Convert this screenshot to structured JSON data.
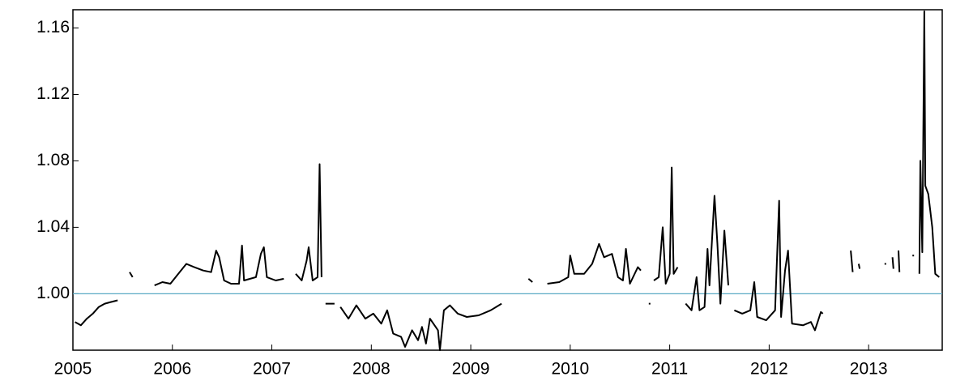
{
  "chart_data": {
    "type": "line",
    "x": [
      2005.02,
      2005.08,
      2005.14,
      2005.2,
      2005.26,
      2005.32,
      2005.38,
      2005.45,
      2005.5,
      2005.57,
      2005.6,
      2005.7,
      2005.82,
      2005.9,
      2005.98,
      2006.06,
      2006.14,
      2006.22,
      2006.31,
      2006.39,
      2006.44,
      2006.47,
      2006.52,
      2006.59,
      2006.67,
      2006.7,
      2006.72,
      2006.84,
      2006.89,
      2006.92,
      2006.95,
      2007.04,
      2007.12,
      2007.18,
      2007.24,
      2007.3,
      2007.35,
      2007.37,
      2007.41,
      2007.46,
      2007.48,
      2007.5,
      2007.52,
      2007.54,
      2007.63,
      2007.66,
      2007.69,
      2007.77,
      2007.85,
      2007.94,
      2008.02,
      2008.1,
      2008.16,
      2008.22,
      2008.3,
      2008.34,
      2008.41,
      2008.47,
      2008.51,
      2008.55,
      2008.59,
      2008.67,
      2008.69,
      2008.73,
      2008.79,
      2008.87,
      2008.96,
      2009.08,
      2009.2,
      2009.31,
      2009.4,
      2009.58,
      2009.62,
      2009.7,
      2009.77,
      2009.89,
      2009.98,
      2010.0,
      2010.04,
      2010.14,
      2010.22,
      2010.29,
      2010.34,
      2010.42,
      2010.48,
      2010.53,
      2010.56,
      2010.6,
      2010.68,
      2010.71,
      2010.75,
      2010.79,
      2010.82,
      2010.84,
      2010.89,
      2010.93,
      2010.96,
      2011.0,
      2011.02,
      2011.04,
      2011.08,
      2011.12,
      2011.16,
      2011.22,
      2011.27,
      2011.3,
      2011.35,
      2011.38,
      2011.4,
      2011.45,
      2011.48,
      2011.51,
      2011.55,
      2011.59,
      2011.62,
      2011.65,
      2011.73,
      2011.81,
      2011.85,
      2011.88,
      2011.97,
      2012.06,
      2012.1,
      2012.12,
      2012.16,
      2012.19,
      2012.23,
      2012.34,
      2012.42,
      2012.46,
      2012.52,
      2012.54,
      2012.6,
      2012.82,
      2012.84,
      2012.87,
      2012.9,
      2012.91,
      2013.0,
      2013.16,
      2013.2,
      2013.24,
      2013.25,
      2013.27,
      2013.3,
      2013.31,
      2013.38,
      2013.44,
      2013.48,
      2013.51,
      2013.52,
      2013.54,
      2013.56,
      2013.57,
      2013.6,
      2013.64,
      2013.67,
      2013.71
    ],
    "series": [
      {
        "color": "#000000",
        "values": [
          0.983,
          0.981,
          0.985,
          0.988,
          0.992,
          0.994,
          0.995,
          0.996,
          null,
          1.013,
          1.01,
          null,
          1.005,
          1.007,
          1.006,
          1.012,
          1.018,
          1.016,
          1.014,
          1.013,
          1.026,
          1.022,
          1.008,
          1.006,
          1.006,
          1.029,
          1.008,
          1.01,
          1.024,
          1.028,
          1.01,
          1.008,
          1.009,
          null,
          1.012,
          1.008,
          1.02,
          1.028,
          1.008,
          1.01,
          1.078,
          1.01,
          null,
          0.994,
          0.994,
          null,
          0.992,
          0.985,
          0.993,
          0.985,
          0.988,
          0.982,
          0.99,
          0.976,
          0.974,
          0.968,
          0.978,
          0.972,
          0.98,
          0.97,
          0.985,
          0.978,
          0.966,
          0.99,
          0.993,
          0.988,
          0.986,
          0.987,
          0.99,
          0.994,
          null,
          1.009,
          1.007,
          null,
          1.006,
          1.007,
          1.01,
          1.023,
          1.012,
          1.012,
          1.018,
          1.03,
          1.022,
          1.024,
          1.01,
          1.008,
          1.027,
          1.006,
          1.016,
          1.014,
          null,
          0.994,
          null,
          1.008,
          1.01,
          1.04,
          1.006,
          1.012,
          1.076,
          1.012,
          1.016,
          null,
          0.994,
          0.99,
          1.01,
          0.99,
          0.992,
          1.027,
          1.005,
          1.059,
          1.03,
          0.994,
          1.038,
          1.005,
          null,
          0.99,
          0.988,
          0.99,
          1.007,
          0.986,
          0.984,
          0.99,
          1.056,
          0.986,
          1.014,
          1.026,
          0.982,
          0.981,
          0.983,
          0.978,
          0.989,
          0.988,
          null,
          1.026,
          1.013,
          null,
          1.018,
          1.015,
          null,
          1.018,
          null,
          1.022,
          1.015,
          null,
          1.026,
          1.013,
          null,
          1.023,
          null,
          1.012,
          1.08,
          1.025,
          1.17,
          1.065,
          1.06,
          1.04,
          1.012,
          1.01
        ]
      }
    ],
    "xlim": [
      2005.0,
      2013.74
    ],
    "xticks": [
      2005,
      2006,
      2007,
      2008,
      2009,
      2010,
      2011,
      2012,
      2013
    ],
    "ylim": [
      0.966,
      1.171
    ],
    "yticks": [
      {
        "value": 1.0,
        "label": "1.00"
      },
      1.04,
      1.08,
      1.12,
      1.16
    ],
    "reference_line": {
      "value": 1.0,
      "color": "#5aa9c4"
    }
  }
}
